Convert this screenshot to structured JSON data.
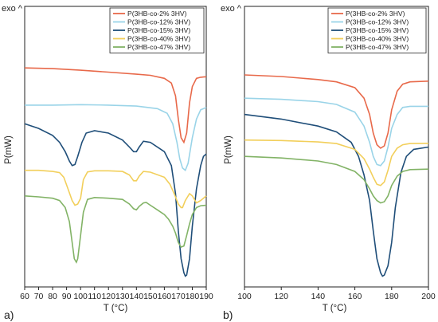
{
  "chart_data": [
    {
      "type": "line",
      "panel_label": "a)",
      "corner_label": "exo ^",
      "xlabel": "T (°C)",
      "ylabel": "P(mW)",
      "xlim": [
        60,
        190
      ],
      "ylim": [
        0,
        100
      ],
      "x_ticks": [
        60,
        70,
        80,
        90,
        100,
        110,
        120,
        130,
        140,
        150,
        160,
        170,
        180,
        190
      ],
      "y_ticks_shown": false,
      "grid": false,
      "legend_position": "top-right",
      "series": [
        {
          "name": "P(3HB-co-2% 3HV)",
          "color": "#e8694a",
          "points": [
            [
              60,
              90
            ],
            [
              80,
              89.7
            ],
            [
              100,
              89
            ],
            [
              120,
              88.2
            ],
            [
              140,
              87.3
            ],
            [
              150,
              86.8
            ],
            [
              160,
              85.5
            ],
            [
              165,
              83.5
            ],
            [
              168,
              78
            ],
            [
              170,
              68
            ],
            [
              172,
              60
            ],
            [
              174,
              58
            ],
            [
              176,
              62
            ],
            [
              178,
              75
            ],
            [
              180,
              82
            ],
            [
              183,
              85.5
            ],
            [
              186,
              86
            ],
            [
              190,
              86.2
            ]
          ]
        },
        {
          "name": "P(3HB-co-12% 3HV)",
          "color": "#9ad4e8",
          "points": [
            [
              60,
              74
            ],
            [
              80,
              74
            ],
            [
              100,
              74.2
            ],
            [
              120,
              74
            ],
            [
              140,
              73.6
            ],
            [
              155,
              72.5
            ],
            [
              162,
              70.5
            ],
            [
              166,
              66
            ],
            [
              169,
              58
            ],
            [
              171,
              51
            ],
            [
              173,
              47
            ],
            [
              175,
              46
            ],
            [
              177,
              49
            ],
            [
              180,
              60
            ],
            [
              183,
              68
            ],
            [
              186,
              72
            ],
            [
              190,
              73
            ]
          ]
        },
        {
          "name": "P(3HB-co-15% 3HV)",
          "color": "#1f4e79",
          "points": [
            [
              60,
              66
            ],
            [
              70,
              64
            ],
            [
              80,
              61
            ],
            [
              85,
              58
            ],
            [
              89,
              54
            ],
            [
              92,
              50
            ],
            [
              94,
              48
            ],
            [
              96,
              48.5
            ],
            [
              98,
              52
            ],
            [
              101,
              58
            ],
            [
              104,
              62
            ],
            [
              110,
              63
            ],
            [
              120,
              62
            ],
            [
              130,
              59
            ],
            [
              135,
              56
            ],
            [
              138,
              54
            ],
            [
              140,
              54
            ],
            [
              142,
              56
            ],
            [
              145,
              58.5
            ],
            [
              150,
              58
            ],
            [
              160,
              54
            ],
            [
              165,
              48
            ],
            [
              168,
              36
            ],
            [
              170,
              20
            ],
            [
              172,
              8
            ],
            [
              174,
              2
            ],
            [
              175,
              0.5
            ],
            [
              176,
              1
            ],
            [
              178,
              8
            ],
            [
              180,
              22
            ],
            [
              183,
              38
            ],
            [
              186,
              48
            ],
            [
              188,
              52
            ],
            [
              190,
              53
            ]
          ]
        },
        {
          "name": "P(3HB-co-40% 3HV)",
          "color": "#f2cf5b",
          "points": [
            [
              60,
              46
            ],
            [
              70,
              46
            ],
            [
              80,
              45.5
            ],
            [
              85,
              45
            ],
            [
              88,
              43
            ],
            [
              91,
              38
            ],
            [
              94,
              33
            ],
            [
              96,
              31
            ],
            [
              98,
              31.5
            ],
            [
              100,
              34
            ],
            [
              102,
              42
            ],
            [
              105,
              45.3
            ],
            [
              110,
              45.8
            ],
            [
              120,
              45.8
            ],
            [
              130,
              45.5
            ],
            [
              135,
              44
            ],
            [
              138,
              41.5
            ],
            [
              140,
              41.5
            ],
            [
              142,
              43.5
            ],
            [
              145,
              45.5
            ],
            [
              150,
              45.2
            ],
            [
              160,
              43
            ],
            [
              164,
              40
            ],
            [
              167,
              36
            ],
            [
              170,
              31.5
            ],
            [
              172,
              30
            ],
            [
              173,
              30
            ],
            [
              175,
              33
            ],
            [
              178,
              36
            ],
            [
              180,
              35
            ],
            [
              183,
              32
            ],
            [
              186,
              33
            ],
            [
              190,
              35
            ]
          ]
        },
        {
          "name": "P(3HB-co-47% 3HV)",
          "color": "#82b366",
          "points": [
            [
              60,
              35
            ],
            [
              70,
              34.6
            ],
            [
              80,
              34
            ],
            [
              85,
              33
            ],
            [
              89,
              30
            ],
            [
              92,
              24
            ],
            [
              94,
              15
            ],
            [
              95.5,
              8
            ],
            [
              97,
              6.5
            ],
            [
              98,
              8
            ],
            [
              100,
              18
            ],
            [
              102,
              28
            ],
            [
              105,
              33.5
            ],
            [
              110,
              34.3
            ],
            [
              120,
              34
            ],
            [
              130,
              33.5
            ],
            [
              135,
              31.5
            ],
            [
              138,
              29.5
            ],
            [
              140,
              29
            ],
            [
              142,
              30.5
            ],
            [
              145,
              32
            ],
            [
              147,
              32.2
            ],
            [
              150,
              31
            ],
            [
              155,
              29
            ],
            [
              160,
              27
            ],
            [
              163,
              25
            ],
            [
              166,
              22
            ],
            [
              168,
              19
            ],
            [
              170,
              15
            ],
            [
              172,
              13
            ],
            [
              174,
              13.5
            ],
            [
              176,
              18
            ],
            [
              178,
              23
            ],
            [
              180,
              27
            ],
            [
              183,
              30
            ],
            [
              186,
              30.8
            ],
            [
              190,
              31
            ]
          ]
        }
      ]
    },
    {
      "type": "line",
      "panel_label": "b)",
      "corner_label": "exo ^",
      "xlabel": "T (°C)",
      "ylabel": "P(mW)",
      "xlim": [
        100,
        200
      ],
      "ylim": [
        0,
        100
      ],
      "x_ticks": [
        100,
        120,
        140,
        160,
        180,
        200
      ],
      "y_ticks_shown": false,
      "grid": false,
      "legend_position": "top-right",
      "series": [
        {
          "name": "P(3HB-co-2% 3HV)",
          "color": "#e8694a",
          "points": [
            [
              100,
              87
            ],
            [
              120,
              86.3
            ],
            [
              140,
              85
            ],
            [
              150,
              84
            ],
            [
              160,
              81.5
            ],
            [
              165,
              77
            ],
            [
              168,
              70
            ],
            [
              170,
              62
            ],
            [
              172,
              57
            ],
            [
              174,
              55.5
            ],
            [
              176,
              56.5
            ],
            [
              178,
              62
            ],
            [
              180,
              72
            ],
            [
              183,
              80
            ],
            [
              186,
              83
            ],
            [
              190,
              84
            ],
            [
              200,
              84.3
            ]
          ]
        },
        {
          "name": "P(3HB-co-12% 3HV)",
          "color": "#9ad4e8",
          "points": [
            [
              100,
              77
            ],
            [
              120,
              76.5
            ],
            [
              140,
              75.5
            ],
            [
              150,
              74.3
            ],
            [
              160,
              71
            ],
            [
              165,
              65
            ],
            [
              168,
              58
            ],
            [
              170,
              52
            ],
            [
              172,
              48.5
            ],
            [
              174,
              48
            ],
            [
              176,
              50
            ],
            [
              178,
              56
            ],
            [
              180,
              64
            ],
            [
              183,
              70
            ],
            [
              186,
              73
            ],
            [
              190,
              73.5
            ],
            [
              200,
              73.5
            ]
          ]
        },
        {
          "name": "P(3HB-co-15% 3HV)",
          "color": "#1f4e79",
          "points": [
            [
              100,
              70
            ],
            [
              120,
              68
            ],
            [
              140,
              65
            ],
            [
              150,
              62.5
            ],
            [
              158,
              58
            ],
            [
              162,
              52
            ],
            [
              165,
              44
            ],
            [
              168,
              33
            ],
            [
              170,
              20
            ],
            [
              172,
              8
            ],
            [
              174,
              2
            ],
            [
              175,
              0.5
            ],
            [
              176,
              1
            ],
            [
              178,
              5
            ],
            [
              180,
              15
            ],
            [
              182,
              30
            ],
            [
              185,
              45
            ],
            [
              188,
              52
            ],
            [
              192,
              55
            ],
            [
              200,
              56
            ]
          ]
        },
        {
          "name": "P(3HB-co-40% 3HV)",
          "color": "#f2cf5b",
          "points": [
            [
              100,
              59
            ],
            [
              120,
              58.8
            ],
            [
              140,
              58.2
            ],
            [
              150,
              57.5
            ],
            [
              160,
              55
            ],
            [
              165,
              51
            ],
            [
              168,
              46.5
            ],
            [
              170,
              43
            ],
            [
              172,
              40
            ],
            [
              174,
              39.5
            ],
            [
              176,
              41
            ],
            [
              178,
              46
            ],
            [
              180,
              52
            ],
            [
              183,
              55.5
            ],
            [
              186,
              57
            ],
            [
              190,
              57.5
            ],
            [
              200,
              57.6
            ]
          ]
        },
        {
          "name": "P(3HB-co-47% 3HV)",
          "color": "#82b366",
          "points": [
            [
              100,
              52
            ],
            [
              120,
              51.3
            ],
            [
              140,
              50
            ],
            [
              150,
              48.5
            ],
            [
              160,
              45.5
            ],
            [
              165,
              42
            ],
            [
              168,
              38
            ],
            [
              170,
              35
            ],
            [
              172,
              33
            ],
            [
              174,
              32
            ],
            [
              176,
              32.5
            ],
            [
              178,
              35
            ],
            [
              180,
              39.5
            ],
            [
              183,
              43.5
            ],
            [
              186,
              45.5
            ],
            [
              190,
              46.3
            ],
            [
              200,
              46.5
            ]
          ]
        }
      ]
    }
  ]
}
